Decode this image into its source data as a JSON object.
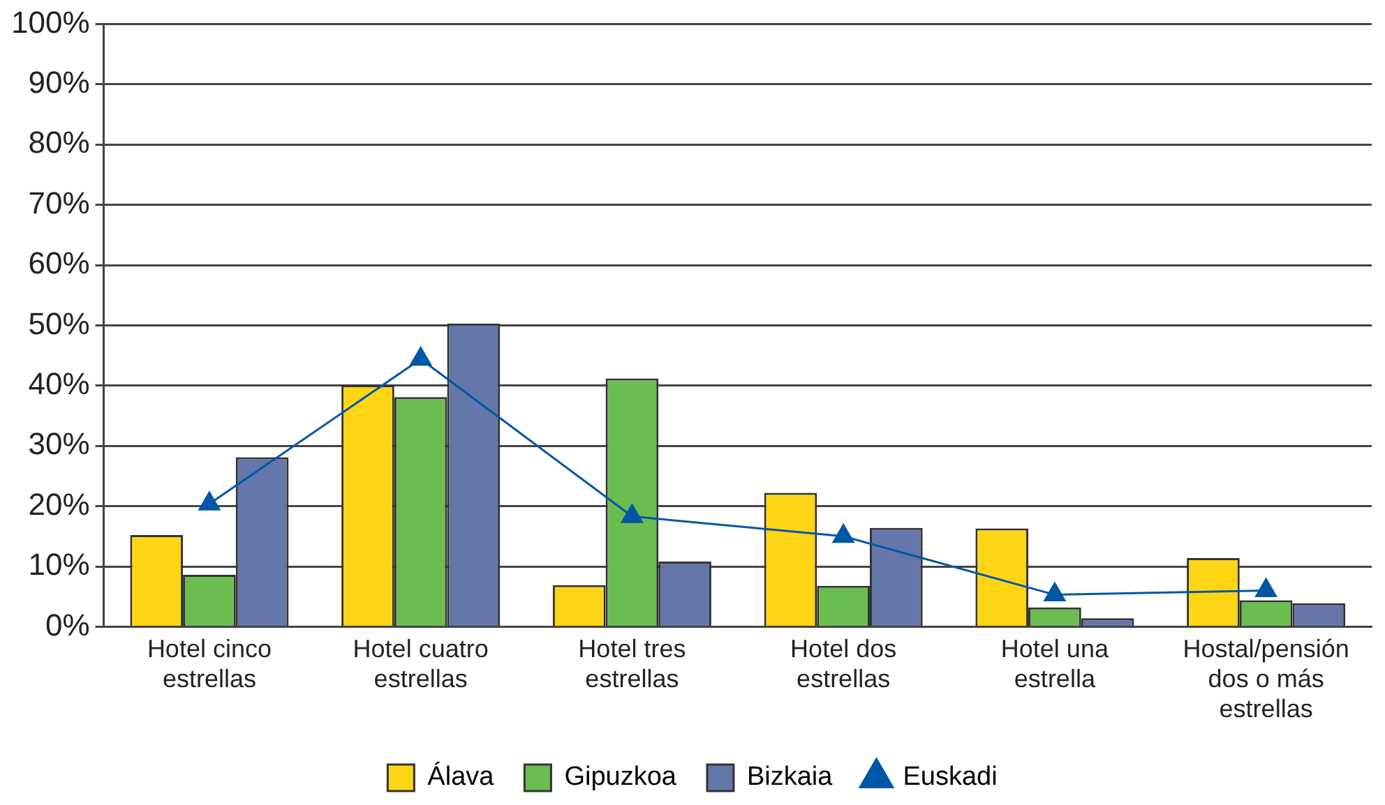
{
  "chart_data": {
    "type": "bar",
    "categories": [
      "Hotel cinco estrellas",
      "Hotel cuatro estrellas",
      "Hotel tres estrellas",
      "Hotel dos estrellas",
      "Hotel una estrella",
      "Hostal/pensión dos o más estrellas"
    ],
    "series": [
      {
        "name": "Álava",
        "color": "#fdd515",
        "values": [
          15.2,
          40.1,
          6.9,
          22.2,
          16.3,
          11.4
        ]
      },
      {
        "name": "Gipuzkoa",
        "color": "#6cbd4f",
        "values": [
          8.6,
          38.1,
          41.2,
          6.8,
          3.2,
          4.4
        ]
      },
      {
        "name": "Bizkaia",
        "color": "#6477a8",
        "values": [
          28.1,
          50.3,
          10.8,
          16.4,
          1.4,
          3.9
        ]
      },
      {
        "name": "Euskadi",
        "type": "line",
        "color": "#0057a8",
        "marker": "triangle",
        "values": [
          20.4,
          44.4,
          18.3,
          15.0,
          5.3,
          6.0
        ]
      }
    ],
    "ylim": [
      0,
      100
    ],
    "yticks": [
      {
        "value": 0,
        "label": "0%"
      },
      {
        "value": 10,
        "label": "10%"
      },
      {
        "value": 20,
        "label": "20%"
      },
      {
        "value": 30,
        "label": "30%"
      },
      {
        "value": 40,
        "label": "40%"
      },
      {
        "value": 50,
        "label": "50%"
      },
      {
        "value": 60,
        "label": "60%"
      },
      {
        "value": 70,
        "label": "70%"
      },
      {
        "value": 80,
        "label": "80%"
      },
      {
        "value": 90,
        "label": "90%"
      },
      {
        "value": 100,
        "label": "100%"
      }
    ],
    "grid": "y",
    "legend": "bottom"
  }
}
